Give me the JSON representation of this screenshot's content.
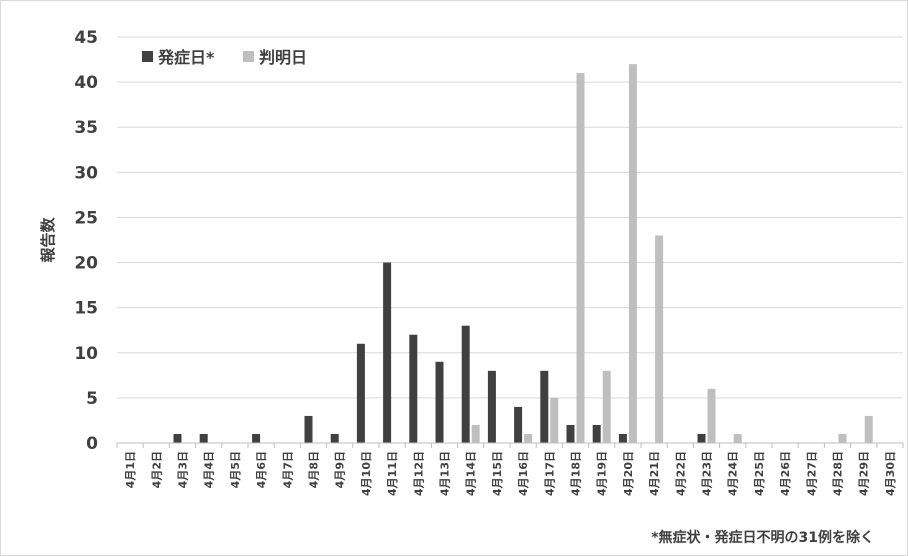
{
  "chart_data": {
    "type": "bar",
    "ylabel": "報告数",
    "ylim": [
      0,
      45
    ],
    "yticks": [
      0,
      5,
      10,
      15,
      20,
      25,
      30,
      35,
      40,
      45
    ],
    "grid": "horizontal",
    "legend_position": "top-left",
    "categories": [
      "4月1日",
      "4月2日",
      "4月3日",
      "4月4日",
      "4月5日",
      "4月6日",
      "4月7日",
      "4月8日",
      "4月9日",
      "4月10日",
      "4月11日",
      "4月12日",
      "4月13日",
      "4月14日",
      "4月15日",
      "4月16日",
      "4月17日",
      "4月18日",
      "4月19日",
      "4月20日",
      "4月21日",
      "4月22日",
      "4月23日",
      "4月24日",
      "4月25日",
      "4月26日",
      "4月27日",
      "4月28日",
      "4月29日",
      "4月30日"
    ],
    "series": [
      {
        "name": "発症日*",
        "color": "#404040",
        "values": [
          0,
          0,
          1,
          1,
          0,
          1,
          0,
          3,
          1,
          11,
          20,
          12,
          9,
          13,
          8,
          4,
          8,
          2,
          2,
          1,
          0,
          0,
          1,
          0,
          0,
          0,
          0,
          0,
          0,
          0
        ]
      },
      {
        "name": "判明日",
        "color": "#bfbfbf",
        "values": [
          0,
          0,
          0,
          0,
          0,
          0,
          0,
          0,
          0,
          0,
          0,
          0,
          0,
          2,
          0,
          1,
          5,
          41,
          8,
          42,
          23,
          0,
          6,
          1,
          0,
          0,
          0,
          1,
          3,
          0
        ]
      }
    ],
    "footnote": "*無症状・発症日不明の31例を除く"
  }
}
